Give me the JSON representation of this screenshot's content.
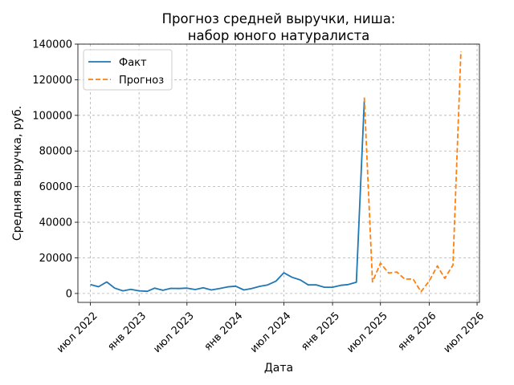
{
  "chart_data": {
    "type": "line",
    "title_lines": [
      "Прогноз средней выручки, ниша:",
      "набор юного натуралиста"
    ],
    "xlabel": "Дата",
    "ylabel": "Средняя выручка, руб.",
    "ylim": [
      -5000,
      140000
    ],
    "xlim": [
      "2022-05-15",
      "2026-07-10"
    ],
    "yticks": [
      0,
      20000,
      40000,
      60000,
      80000,
      100000,
      120000,
      140000
    ],
    "ytick_labels": [
      "0",
      "20000",
      "40000",
      "60000",
      "80000",
      "100000",
      "120000",
      "140000"
    ],
    "xticks": [
      "2022-07-01",
      "2023-01-01",
      "2023-07-01",
      "2024-01-01",
      "2024-07-01",
      "2025-01-01",
      "2025-07-01",
      "2026-01-01",
      "2026-07-01"
    ],
    "xtick_labels": [
      "июл 2022",
      "янв 2023",
      "июл 2023",
      "янв 2024",
      "июл 2024",
      "янв 2025",
      "июл 2025",
      "янв 2026",
      "июл 2026"
    ],
    "grid": true,
    "legend_position": "top-left",
    "series": [
      {
        "name": "Факт",
        "color": "#1f77b4",
        "style": "solid",
        "x": [
          "2022-07-01",
          "2022-08-01",
          "2022-09-01",
          "2022-10-01",
          "2022-11-01",
          "2022-12-01",
          "2023-01-01",
          "2023-02-01",
          "2023-03-01",
          "2023-04-01",
          "2023-05-01",
          "2023-06-01",
          "2023-07-01",
          "2023-08-01",
          "2023-09-01",
          "2023-10-01",
          "2023-11-01",
          "2023-12-01",
          "2024-01-01",
          "2024-02-01",
          "2024-03-01",
          "2024-04-01",
          "2024-05-01",
          "2024-06-01",
          "2024-07-01",
          "2024-08-01",
          "2024-09-01",
          "2024-10-01",
          "2024-11-01",
          "2024-12-01",
          "2025-01-01",
          "2025-02-01",
          "2025-03-01",
          "2025-04-01",
          "2025-05-01"
        ],
        "values": [
          5000,
          3800,
          6500,
          3000,
          1500,
          2300,
          1500,
          1200,
          3000,
          1800,
          2900,
          2800,
          3000,
          2200,
          3200,
          2000,
          2800,
          3700,
          4100,
          2000,
          2800,
          4000,
          4800,
          6900,
          11600,
          9100,
          7600,
          4800,
          4800,
          3500,
          3500,
          4600,
          5000,
          6300,
          108000
        ]
      },
      {
        "name": "Прогноз",
        "color": "#ff7f0e",
        "style": "dashed",
        "x": [
          "2025-05-01",
          "2025-06-01",
          "2025-07-01",
          "2025-08-01",
          "2025-09-01",
          "2025-10-01",
          "2025-11-01",
          "2025-12-01",
          "2026-01-01",
          "2026-02-01",
          "2026-03-01",
          "2026-04-01",
          "2026-05-01"
        ],
        "values": [
          110000,
          6500,
          17000,
          11500,
          12000,
          8000,
          8200,
          1000,
          7000,
          15500,
          8500,
          16000,
          136000
        ]
      }
    ]
  }
}
